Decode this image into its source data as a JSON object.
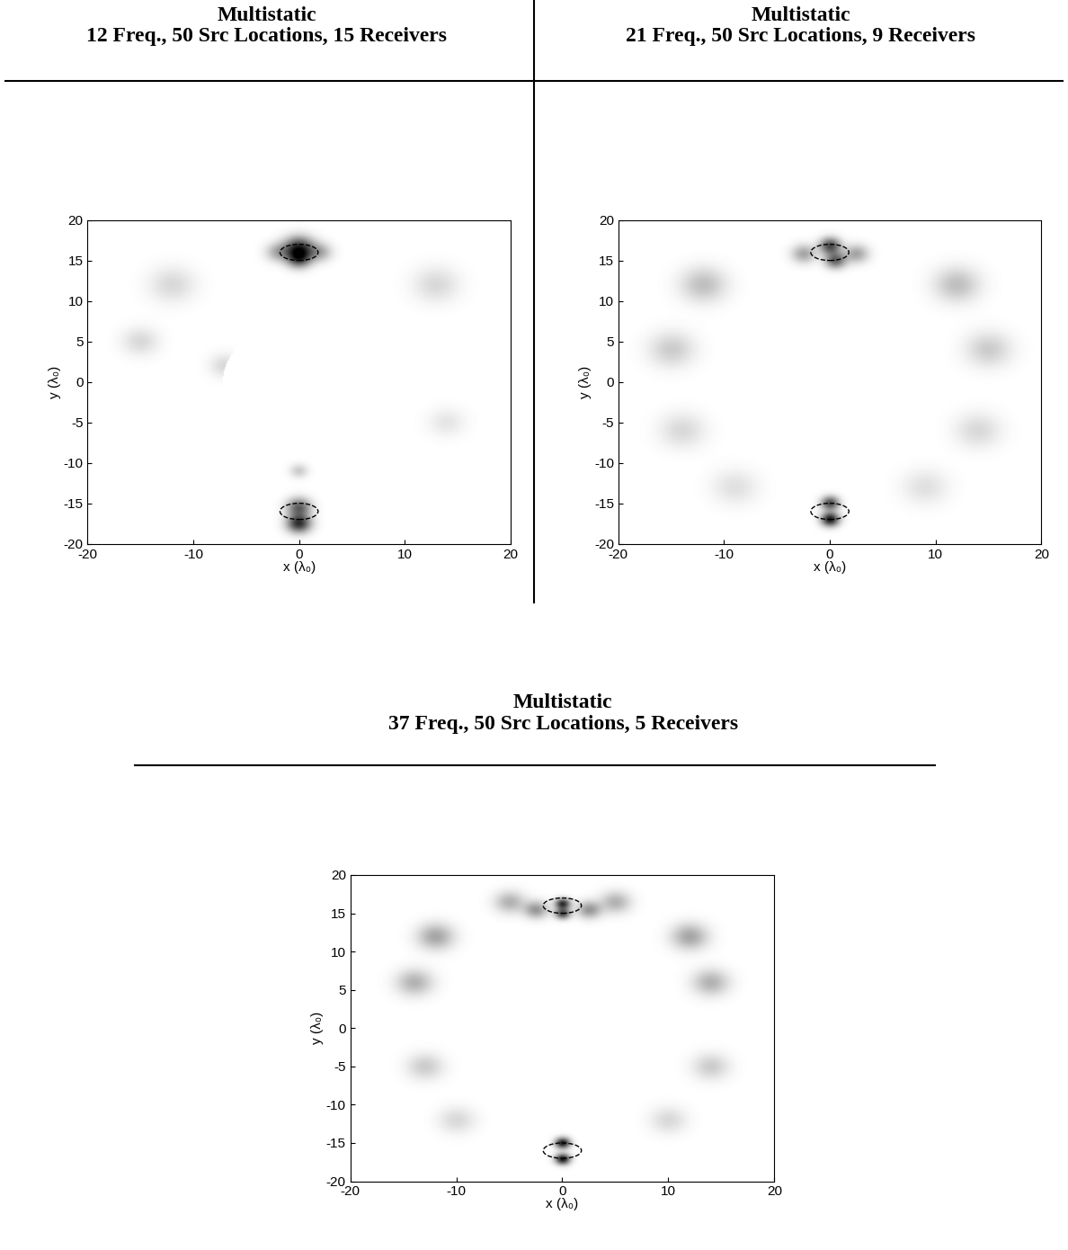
{
  "chart_data": [
    {
      "type": "heatmap",
      "title": "Multistatic\n12 Freq., 50 Src Locations, 15 Receivers",
      "x_label": "x (λ₀)",
      "y_label": "y (λ₀)",
      "xlim": [
        -20,
        20
      ],
      "ylim": [
        -20,
        20
      ],
      "xticks": [
        -20,
        -10,
        0,
        10,
        20
      ],
      "yticks": [
        -20,
        -15,
        -10,
        -5,
        0,
        5,
        10,
        15,
        20
      ],
      "grid": false,
      "intensity_range": [
        0,
        1
      ],
      "hole_radius": 7.2,
      "targets": [
        {
          "x": 0,
          "y": 16,
          "width": 3.6,
          "height": 2.0
        },
        {
          "x": 0,
          "y": -16,
          "width": 3.6,
          "height": 2.0
        }
      ],
      "blobs": [
        [
          0,
          16.5,
          1.0,
          0.8
        ],
        [
          0,
          15.2,
          0.8,
          0.6
        ],
        [
          -2,
          16,
          0.8,
          0.3
        ],
        [
          2,
          16,
          0.8,
          0.3
        ],
        [
          0,
          -17.5,
          0.8,
          0.8
        ],
        [
          0,
          -15.5,
          0.8,
          0.6
        ],
        [
          -12,
          12,
          1.5,
          0.15
        ],
        [
          13,
          12,
          1.5,
          0.15
        ],
        [
          -15,
          5,
          1.2,
          0.15
        ],
        [
          14,
          -5,
          1.2,
          0.1
        ],
        [
          0,
          -11,
          0.6,
          0.2
        ],
        [
          -7,
          2,
          1.0,
          0.15
        ]
      ]
    },
    {
      "type": "heatmap",
      "title": "Multistatic\n21 Freq., 50 Src Locations, 9 Receivers",
      "x_label": "x (λ₀)",
      "y_label": "y (λ₀)",
      "xlim": [
        -20,
        20
      ],
      "ylim": [
        -20,
        20
      ],
      "xticks": [
        -20,
        -10,
        0,
        10,
        20
      ],
      "yticks": [
        -20,
        -15,
        -10,
        -5,
        0,
        5,
        10,
        15,
        20
      ],
      "grid": false,
      "intensity_range": [
        0,
        1
      ],
      "hole_radius": 7.2,
      "targets": [
        {
          "x": 0,
          "y": 16,
          "width": 3.6,
          "height": 2.0
        },
        {
          "x": 0,
          "y": -16,
          "width": 3.6,
          "height": 2.0
        }
      ],
      "blobs": [
        [
          0,
          16.8,
          0.7,
          0.7
        ],
        [
          0.5,
          15,
          0.7,
          0.6
        ],
        [
          -2.5,
          15.8,
          0.8,
          0.35
        ],
        [
          2.5,
          15.8,
          0.8,
          0.35
        ],
        [
          0,
          -17,
          0.6,
          0.9
        ],
        [
          0,
          -15,
          0.6,
          0.7
        ],
        [
          -12,
          12,
          1.5,
          0.25
        ],
        [
          12,
          12,
          1.5,
          0.25
        ],
        [
          -15,
          4,
          1.5,
          0.2
        ],
        [
          15,
          4,
          1.5,
          0.2
        ],
        [
          -14,
          -6,
          1.5,
          0.15
        ],
        [
          14,
          -6,
          1.5,
          0.15
        ],
        [
          -9,
          -13,
          1.5,
          0.12
        ],
        [
          9,
          -13,
          1.5,
          0.12
        ]
      ]
    },
    {
      "type": "heatmap",
      "title": "Multistatic\n37 Freq., 50 Src Locations, 5 Receivers",
      "x_label": "x (λ₀)",
      "y_label": "y (λ₀)",
      "xlim": [
        -20,
        20
      ],
      "ylim": [
        -20,
        20
      ],
      "xticks": [
        -20,
        -10,
        0,
        10,
        20
      ],
      "yticks": [
        -20,
        -15,
        -10,
        -5,
        0,
        5,
        10,
        15,
        20
      ],
      "grid": false,
      "intensity_range": [
        0,
        1
      ],
      "hole_radius": 7.2,
      "targets": [
        {
          "x": 0,
          "y": 16,
          "width": 3.6,
          "height": 2.0
        },
        {
          "x": 0,
          "y": -16,
          "width": 3.6,
          "height": 2.0
        }
      ],
      "blobs": [
        [
          0,
          16.3,
          0.5,
          0.8
        ],
        [
          0,
          15,
          0.5,
          0.7
        ],
        [
          -2.5,
          15.5,
          0.8,
          0.4
        ],
        [
          2.5,
          15.5,
          0.8,
          0.4
        ],
        [
          -5,
          16.5,
          1.0,
          0.3
        ],
        [
          5,
          16.5,
          1.0,
          0.3
        ],
        [
          0,
          -17.1,
          0.5,
          0.9
        ],
        [
          0,
          -15,
          0.5,
          0.9
        ],
        [
          -12,
          12,
          1.2,
          0.35
        ],
        [
          12,
          12,
          1.2,
          0.35
        ],
        [
          -14,
          6,
          1.2,
          0.3
        ],
        [
          14,
          6,
          1.2,
          0.3
        ],
        [
          -13,
          -5,
          1.2,
          0.2
        ],
        [
          14,
          -5,
          1.2,
          0.2
        ],
        [
          -10,
          -12,
          1.2,
          0.15
        ],
        [
          10,
          -12,
          1.2,
          0.15
        ]
      ]
    }
  ]
}
